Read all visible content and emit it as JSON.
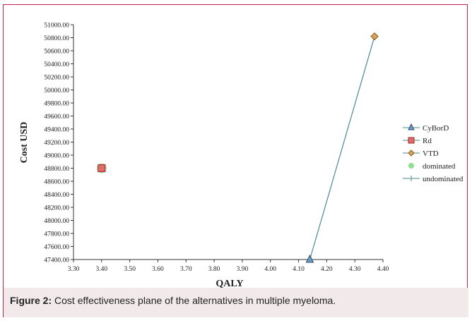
{
  "chart_data": {
    "type": "scatter",
    "title": "",
    "xlabel": "QALY",
    "ylabel": "Cost USD",
    "xlim": [
      3.3,
      4.4
    ],
    "ylim": [
      47400,
      51000
    ],
    "x_ticks": [
      "3.30",
      "3.40",
      "3.50",
      "3.60",
      "3.70",
      "3.80",
      "3.90",
      "4.00",
      "4.10",
      "4.20",
      "4.30",
      "4.40"
    ],
    "y_ticks": [
      "47400.00",
      "47600.00",
      "47800.00",
      "48000.00",
      "48200.00",
      "48400.00",
      "48600.00",
      "48800.00",
      "49000.00",
      "49200.00",
      "49400.00",
      "49600.00",
      "49800.00",
      "50000.00",
      "50200.00",
      "50400.00",
      "50600.00",
      "50800.00",
      "51000.00"
    ],
    "grid": false,
    "legend_position": "right",
    "series": [
      {
        "name": "CyBorD",
        "marker": "triangle",
        "color": "#6a9bc4",
        "points": [
          {
            "x": 4.14,
            "y": 47400
          }
        ]
      },
      {
        "name": "Rd",
        "marker": "square",
        "color": "#e06c6c",
        "points": [
          {
            "x": 3.4,
            "y": 48800
          }
        ]
      },
      {
        "name": "VTD",
        "marker": "diamond",
        "color": "#d9a35a",
        "points": [
          {
            "x": 4.37,
            "y": 50820
          }
        ]
      },
      {
        "name": "dominated",
        "marker": "circle",
        "color": "#8fe08f",
        "points": [
          {
            "x": 3.4,
            "y": 48800
          }
        ]
      },
      {
        "name": "undominated",
        "marker": "line",
        "color": "#4a8a92",
        "points": [
          {
            "x": 4.14,
            "y": 47400
          },
          {
            "x": 4.37,
            "y": 50820
          }
        ]
      }
    ]
  },
  "caption": {
    "label": "Figure 2:",
    "text": " Cost effectiveness plane of the alternatives in multiple myeloma."
  }
}
